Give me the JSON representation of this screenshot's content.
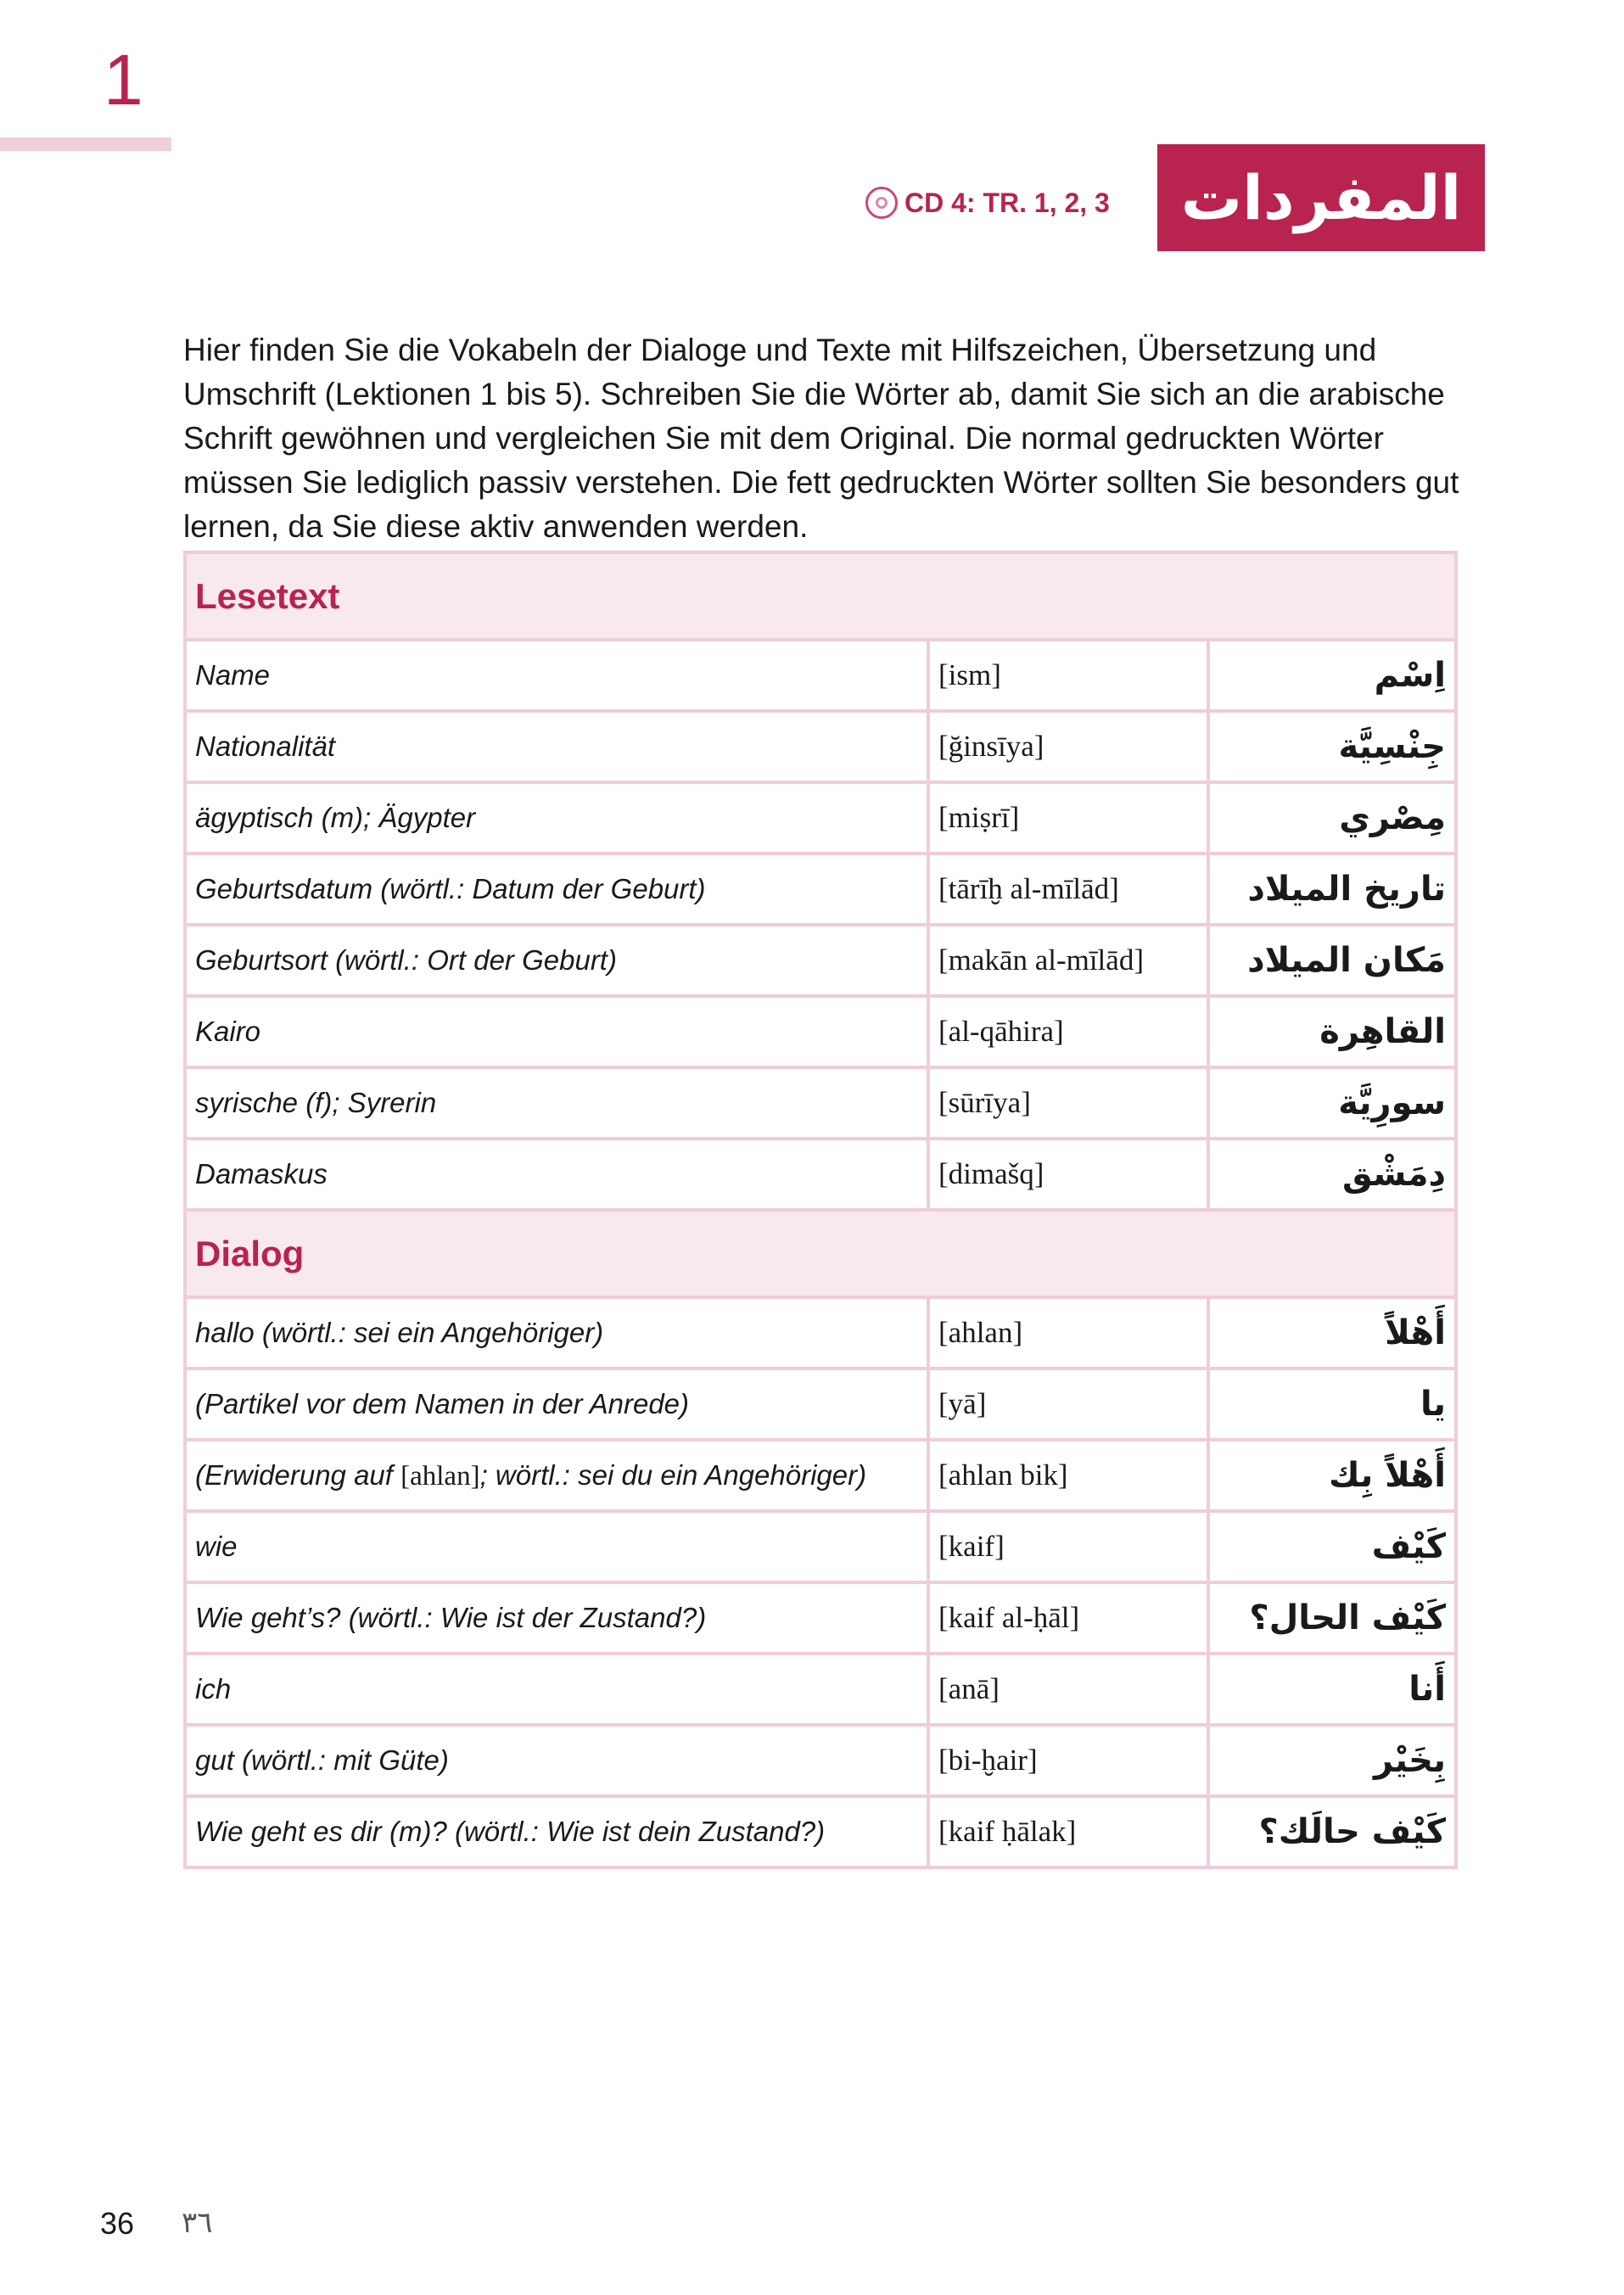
{
  "chapter_number": "1",
  "title_arabic": "المفردات",
  "audio": {
    "icon": "cd-icon",
    "label": "CD 4: TR. 1, 2, 3"
  },
  "intro": "Hier finden Sie die Vokabeln der Dialoge und Texte mit Hilfszeichen, Übersetzung und Umschrift (Lektionen 1 bis 5). Schreiben Sie die Wörter ab, damit Sie sich an die arabische Schrift gewöhnen und vergleichen Sie mit dem Original. Die normal gedruckten Wörter müssen Sie lediglich passiv verstehen. Die fett gedruckten Wörter sollten Sie besonders gut lernen, da Sie diese aktiv anwenden werden.",
  "colors": {
    "accent": "#b8234f",
    "section_bg": "#f8e9ef",
    "border": "#f0ccd9"
  },
  "sections": [
    {
      "title": "Lesetext",
      "rows": [
        {
          "de": "Name",
          "tr": "[ism]",
          "ar": "اِسْم"
        },
        {
          "de": "Nationalität",
          "tr": "[ğinsīya]",
          "ar": "جِنْسِيَّة"
        },
        {
          "de": "ägyptisch (m); Ägypter",
          "tr": "[miṣrī]",
          "ar": "مِصْري"
        },
        {
          "de": "Geburtsdatum (wörtl.: Datum der Geburt)",
          "tr": "[tārīḫ al-mīlād]",
          "ar": "تاريخ الميلاد"
        },
        {
          "de": "Geburtsort (wörtl.: Ort der Geburt)",
          "tr": "[makān al-mīlād]",
          "ar": "مَكان الميلاد"
        },
        {
          "de": "Kairo",
          "tr": "[al-qāhira]",
          "ar": "القاهِرة"
        },
        {
          "de": "syrische (f); Syrerin",
          "tr": "[sūrīya]",
          "ar": "سورِيَّة"
        },
        {
          "de": "Damaskus",
          "tr": "[dimašq]",
          "ar": "دِمَشْق"
        }
      ]
    },
    {
      "title": "Dialog",
      "rows": [
        {
          "de": "hallo (wörtl.: sei ein Angehöriger)",
          "tr": "[ahlan]",
          "ar": "أَهْلاً"
        },
        {
          "de": "(Partikel vor dem Namen in der Anrede)",
          "tr": "[yā]",
          "ar": "يا"
        },
        {
          "de_pre": "(Erwiderung auf ",
          "de_tr": "[ahlan]",
          "de_post": "; wörtl.: sei du ein Angehöriger)",
          "tr": "[ahlan bik]",
          "ar": "أَهْلاً بِك"
        },
        {
          "de": "wie",
          "tr": "[kaif]",
          "ar": "كَيْف"
        },
        {
          "de": "Wie geht’s? (wörtl.: Wie ist der Zustand?)",
          "tr": "[kaif al-ḥāl]",
          "ar": "كَيْف الحال؟"
        },
        {
          "de": "ich",
          "tr": "[anā]",
          "ar": "أَنا"
        },
        {
          "de": "gut (wörtl.: mit Güte)",
          "tr": "[bi-ḫair]",
          "ar": "بِخَيْر"
        },
        {
          "de": "Wie geht es dir (m)? (wörtl.: Wie ist dein Zustand?)",
          "tr": "[kaif ḥālak]",
          "ar": "كَيْف حالَك؟"
        }
      ]
    }
  ],
  "page_number": "36",
  "page_number_arabic": "٣٦"
}
